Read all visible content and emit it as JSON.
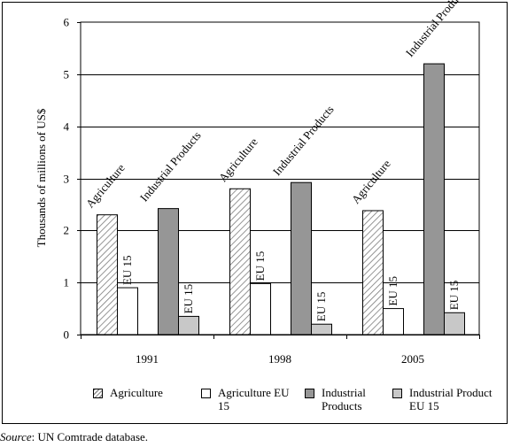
{
  "chart_data": {
    "type": "bar",
    "categories": [
      "1991",
      "1998",
      "2005"
    ],
    "series": [
      {
        "name": "Agriculture",
        "values": [
          2.3,
          2.8,
          2.38
        ],
        "fill": "url(#hatch)",
        "bar_label": "Agriculture"
      },
      {
        "name": "Agriculture EU 15",
        "values": [
          0.9,
          0.98,
          0.5
        ],
        "fill": "#ffffff",
        "bar_label": "EU 15"
      },
      {
        "name": "Industrial Products",
        "values": [
          2.42,
          2.92,
          5.2
        ],
        "fill": "#969696",
        "bar_label": "Industrial Products"
      },
      {
        "name": "Industrial Product EU 15",
        "values": [
          0.35,
          0.2,
          0.42
        ],
        "fill": "#c8c8c8",
        "bar_label": "EU 15"
      }
    ],
    "ylabel": "Thousands of millions of US$",
    "xlabel": "",
    "ylim": [
      0,
      6
    ],
    "yticks": [
      0,
      1,
      2,
      3,
      4,
      5,
      6
    ],
    "grid": true,
    "legend_position": "bottom"
  },
  "legend": [
    {
      "label": "Agriculture"
    },
    {
      "label": "Agriculture EU 15"
    },
    {
      "label": "Industrial Products"
    },
    {
      "label": "Industrial Product EU 15"
    }
  ],
  "source": {
    "prefix": "Source",
    "text": ": UN Comtrade database."
  }
}
